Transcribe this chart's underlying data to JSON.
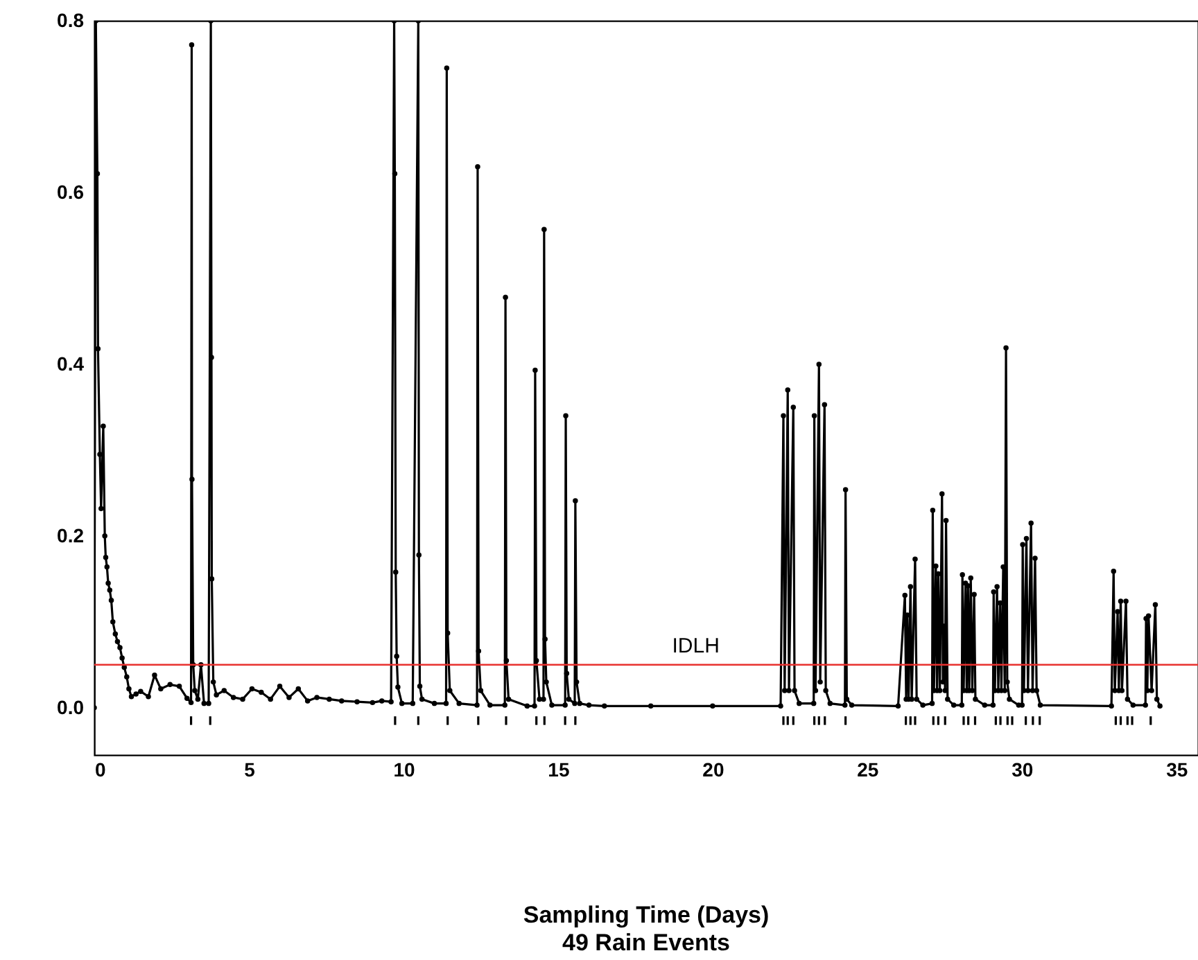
{
  "chart_data": {
    "type": "line",
    "annotations": [
      "Sampling Time (Days)",
      "49 Rain Events"
    ],
    "xlim": [
      0,
      35.7
    ],
    "xticks": [
      0,
      5,
      10,
      15,
      20,
      25,
      30,
      35
    ],
    "ylim": [
      -0.055,
      0.8
    ],
    "yticks": [
      {
        "value": 0,
        "label": "0.0"
      },
      {
        "value": 0.2,
        "label": "0.2"
      },
      {
        "value": 0.4,
        "label": "0.4"
      },
      {
        "value": 0.6,
        "label": "0.6"
      },
      {
        "value": 0.8,
        "label": "0.8"
      }
    ],
    "grid": false,
    "marker": "circle",
    "line_style": "solid",
    "ref_lines": [
      {
        "axis": "y",
        "value": 0.05,
        "label": "IDLH",
        "color": "#e8312f"
      }
    ],
    "series": [
      {
        "color": "#000000",
        "x": [
          0,
          0.05,
          0.1,
          0.12,
          0.18,
          0.22,
          0.29,
          0.34,
          0.37,
          0.41,
          0.45,
          0.5,
          0.55,
          0.6,
          0.68,
          0.75,
          0.83,
          0.9,
          0.97,
          1.05,
          1.12,
          1.2,
          1.35,
          1.5,
          1.75,
          1.95,
          2.15,
          2.45,
          2.75,
          3.0,
          3.13,
          3.15,
          3.16,
          3.2,
          3.25,
          3.35,
          3.45,
          3.55,
          3.7,
          3.77,
          3.79,
          3.8,
          3.85,
          3.95,
          4.2,
          4.5,
          4.8,
          5.1,
          5.4,
          5.7,
          6.0,
          6.3,
          6.6,
          6.9,
          7.2,
          7.6,
          8.0,
          8.5,
          9.0,
          9.3,
          9.6,
          9.7,
          9.72,
          9.75,
          9.78,
          9.82,
          9.95,
          10.3,
          10.48,
          10.5,
          10.53,
          10.6,
          11.0,
          11.38,
          11.4,
          11.43,
          11.5,
          11.8,
          12.38,
          12.4,
          12.43,
          12.5,
          12.8,
          13.28,
          13.3,
          13.33,
          13.4,
          14.0,
          14.24,
          14.26,
          14.3,
          14.4,
          14.53,
          14.55,
          14.58,
          14.62,
          14.8,
          15.23,
          15.25,
          15.28,
          15.35,
          15.54,
          15.56,
          15.6,
          15.7,
          16.0,
          16.5,
          18,
          20,
          22.2,
          22.29,
          22.33,
          22.43,
          22.47,
          22.61,
          22.65,
          22.8,
          23.27,
          23.29,
          23.33,
          23.44,
          23.48,
          23.62,
          23.66,
          23.8,
          24.28,
          24.3,
          24.34,
          24.5,
          26.0,
          26.22,
          26.26,
          26.3,
          26.34,
          26.4,
          26.44,
          26.55,
          26.6,
          26.8,
          27.1,
          27.12,
          27.16,
          27.22,
          27.26,
          27.3,
          27.35,
          27.42,
          27.45,
          27.48,
          27.52,
          27.55,
          27.6,
          27.8,
          28.06,
          28.08,
          28.12,
          28.18,
          28.22,
          28.26,
          28.3,
          28.35,
          28.4,
          28.46,
          28.5,
          28.8,
          29.07,
          29.09,
          29.13,
          29.2,
          29.24,
          29.3,
          29.34,
          29.4,
          29.45,
          29.49,
          29.53,
          29.6,
          29.9,
          30.01,
          30.03,
          30.07,
          30.15,
          30.2,
          30.3,
          30.35,
          30.43,
          30.48,
          30.6,
          32.9,
          32.97,
          33.01,
          33.1,
          33.14,
          33.2,
          33.24,
          33.37,
          33.42,
          33.6,
          34.0,
          34.02,
          34.06,
          34.1,
          34.2,
          34.32,
          34.37,
          34.47
        ],
        "values": [
          0,
          0.8,
          0.622,
          0.418,
          0.295,
          0.232,
          0.328,
          0.2,
          0.175,
          0.164,
          0.145,
          0.137,
          0.125,
          0.1,
          0.086,
          0.077,
          0.07,
          0.058,
          0.047,
          0.036,
          0.022,
          0.013,
          0.016,
          0.019,
          0.013,
          0.038,
          0.022,
          0.027,
          0.025,
          0.011,
          0.006,
          0.772,
          0.266,
          0.05,
          0.02,
          0.01,
          0.05,
          0.005,
          0.005,
          0.8,
          0.408,
          0.15,
          0.03,
          0.015,
          0.02,
          0.012,
          0.01,
          0.022,
          0.018,
          0.01,
          0.025,
          0.012,
          0.022,
          0.008,
          0.012,
          0.01,
          0.008,
          0.007,
          0.006,
          0.008,
          0.007,
          0.8,
          0.622,
          0.158,
          0.06,
          0.024,
          0.005,
          0.005,
          0.8,
          0.178,
          0.025,
          0.01,
          0.005,
          0.005,
          0.745,
          0.087,
          0.02,
          0.005,
          0.003,
          0.63,
          0.066,
          0.02,
          0.003,
          0.003,
          0.478,
          0.055,
          0.01,
          0.002,
          0.002,
          0.393,
          0.055,
          0.01,
          0.01,
          0.557,
          0.08,
          0.03,
          0.003,
          0.003,
          0.34,
          0.04,
          0.01,
          0.005,
          0.241,
          0.03,
          0.005,
          0.003,
          0.002,
          0.002,
          0.002,
          0.002,
          0.34,
          0.02,
          0.37,
          0.02,
          0.35,
          0.02,
          0.005,
          0.005,
          0.34,
          0.02,
          0.4,
          0.03,
          0.353,
          0.02,
          0.005,
          0.003,
          0.254,
          0.01,
          0.003,
          0.002,
          0.131,
          0.01,
          0.108,
          0.01,
          0.141,
          0.01,
          0.173,
          0.01,
          0.003,
          0.005,
          0.23,
          0.02,
          0.165,
          0.02,
          0.156,
          0.02,
          0.249,
          0.03,
          0.095,
          0.02,
          0.218,
          0.01,
          0.003,
          0.003,
          0.155,
          0.02,
          0.145,
          0.02,
          0.142,
          0.02,
          0.151,
          0.02,
          0.132,
          0.01,
          0.003,
          0.003,
          0.135,
          0.02,
          0.141,
          0.02,
          0.122,
          0.02,
          0.164,
          0.02,
          0.419,
          0.03,
          0.01,
          0.003,
          0.003,
          0.19,
          0.02,
          0.197,
          0.02,
          0.215,
          0.02,
          0.174,
          0.02,
          0.003,
          0.002,
          0.159,
          0.02,
          0.112,
          0.02,
          0.124,
          0.02,
          0.124,
          0.01,
          0.003,
          0.003,
          0.104,
          0.02,
          0.107,
          0.02,
          0.12,
          0.01,
          0.002
        ]
      },
      {
        "type": "bar",
        "color": "#000000",
        "base": [
          -0.02,
          -0.02,
          -0.02,
          -0.02,
          -0.02,
          -0.02,
          -0.02,
          -0.02,
          -0.02,
          -0.02,
          -0.02,
          -0.02,
          -0.02,
          -0.02,
          -0.02,
          -0.02,
          -0.02,
          -0.02,
          -0.02,
          -0.02,
          -0.02,
          -0.02,
          -0.02,
          -0.02,
          -0.02,
          -0.02,
          -0.02,
          -0.02,
          -0.02,
          -0.02,
          -0.02,
          -0.02,
          -0.02,
          -0.02,
          -0.02,
          -0.02,
          -0.02,
          -0.02,
          -0.02
        ],
        "x": [
          3.13,
          3.75,
          9.73,
          10.48,
          11.43,
          12.42,
          13.32,
          14.3,
          14.56,
          15.23,
          15.56,
          22.29,
          22.43,
          22.61,
          23.29,
          23.44,
          23.63,
          24.3,
          26.25,
          26.4,
          26.55,
          27.14,
          27.3,
          27.52,
          28.12,
          28.27,
          28.49,
          29.16,
          29.31,
          29.54,
          29.69,
          30.13,
          30.36,
          30.58,
          33.04,
          33.2,
          33.42,
          33.57,
          34.17
        ],
        "values": [
          0.01,
          0.01,
          0.01,
          0.01,
          0.01,
          0.01,
          0.01,
          0.01,
          0.01,
          0.01,
          0.01,
          0.01,
          0.01,
          0.01,
          0.01,
          0.01,
          0.01,
          0.01,
          0.01,
          0.01,
          0.01,
          0.01,
          0.01,
          0.01,
          0.01,
          0.01,
          0.01,
          0.01,
          0.01,
          0.01,
          0.01,
          0.01,
          0.01,
          0.01,
          0.01,
          0.01,
          0.01,
          0.01,
          0.01
        ]
      }
    ]
  }
}
